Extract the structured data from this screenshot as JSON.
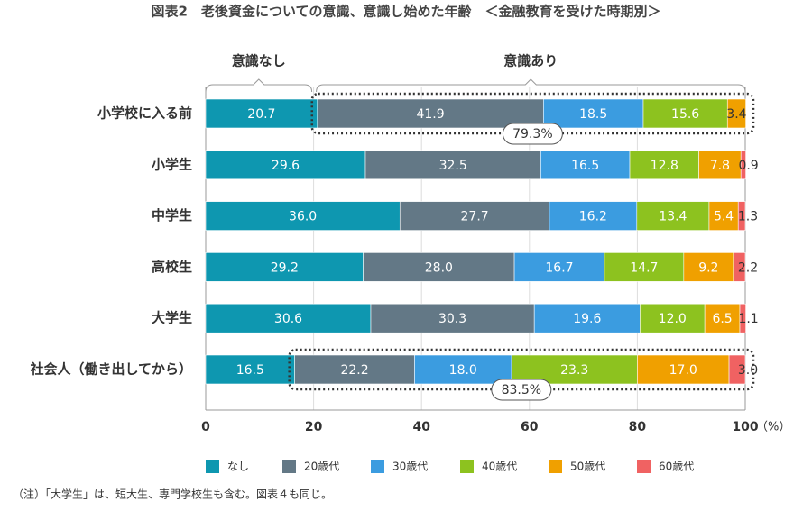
{
  "chart_data": {
    "type": "stacked-bar-horizontal",
    "title": "図表2　老後資金についての意識、意識し始めた年齢　＜金融教育を受けた時期別＞",
    "categories": [
      "小学校に入る前",
      "小学生",
      "中学生",
      "高校生",
      "大学生",
      "社会人（働き出してから）"
    ],
    "series": [
      {
        "name": "なし",
        "color": "#0e97b0",
        "values": [
          20.7,
          29.6,
          36.0,
          29.2,
          30.6,
          16.5
        ],
        "value_labels": [
          "20.7",
          "29.6",
          "36.0",
          "29.2",
          "30.6",
          "16.5"
        ]
      },
      {
        "name": "20歳代",
        "color": "#637886",
        "values": [
          41.9,
          32.5,
          27.7,
          28.0,
          30.3,
          22.2
        ],
        "value_labels": [
          "41.9",
          "32.5",
          "27.7",
          "28.0",
          "30.3",
          "22.2"
        ]
      },
      {
        "name": "30歳代",
        "color": "#3b9ce0",
        "values": [
          18.5,
          16.5,
          16.2,
          16.7,
          19.6,
          18.0
        ],
        "value_labels": [
          "18.5",
          "16.5",
          "16.2",
          "16.7",
          "19.6",
          "18.0"
        ]
      },
      {
        "name": "40歳代",
        "color": "#8dc21f",
        "values": [
          15.6,
          12.8,
          13.4,
          14.7,
          12.0,
          23.3
        ],
        "value_labels": [
          "15.6",
          "12.8",
          "13.4",
          "14.7",
          "12.0",
          "23.3"
        ]
      },
      {
        "name": "50歳代",
        "color": "#f0a000",
        "values": [
          3.4,
          7.8,
          5.4,
          9.2,
          6.5,
          17.0
        ],
        "value_labels": [
          "3.4",
          "7.8",
          "5.4",
          "9.2",
          "6.5",
          "17.0"
        ]
      },
      {
        "name": "60歳代",
        "color": "#f06262",
        "values": [
          null,
          0.9,
          1.3,
          2.2,
          1.1,
          3.0
        ],
        "value_labels": [
          null,
          "0.9",
          "1.3",
          "2.2",
          "1.1",
          "3.0"
        ]
      }
    ],
    "xlim": [
      0,
      100
    ],
    "xticks": [
      0,
      20,
      40,
      60,
      80,
      100
    ],
    "x_unit": "（%）",
    "grid": true,
    "groups": [
      "意識なし",
      "意識あり"
    ],
    "annotations": [
      {
        "value": 79.3,
        "label": "79.3%"
      },
      {
        "value": 83.5,
        "label": "83.5%"
      }
    ],
    "note": "（注）「大学生」は、短大生、専門学校生も含む。図表４も同じ。"
  }
}
